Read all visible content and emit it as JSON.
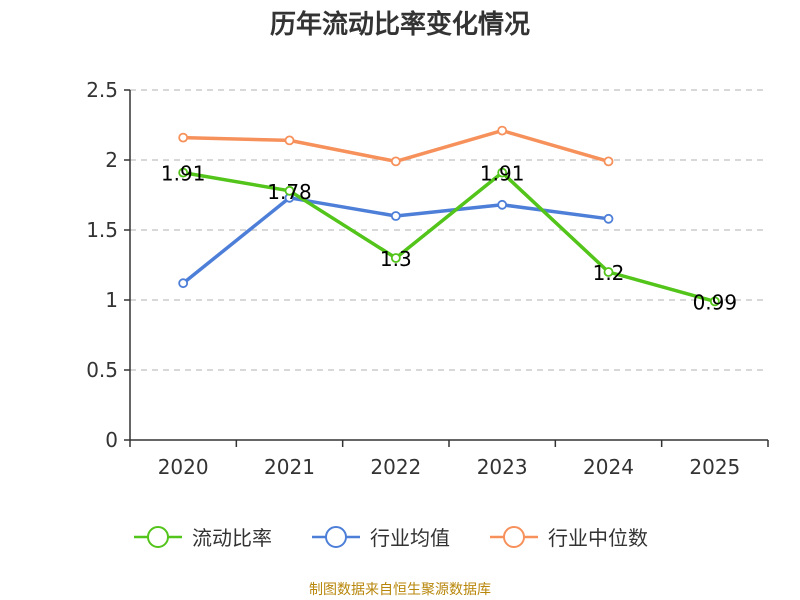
{
  "chart_data": {
    "type": "line",
    "title": "历年流动比率变化情况",
    "categories": [
      "2020",
      "2021",
      "2022",
      "2023",
      "2024",
      "2025"
    ],
    "ylim": [
      0,
      2.5
    ],
    "yticks": [
      0,
      0.5,
      1,
      1.5,
      2,
      2.5
    ],
    "ytick_labels": [
      "0",
      "0.5",
      "1",
      "1.5",
      "2",
      "2.5"
    ],
    "grid": true,
    "legend_position": "bottom",
    "series": [
      {
        "name": "流动比率",
        "color": "#52c41a",
        "values": [
          1.91,
          1.78,
          1.3,
          1.91,
          1.2,
          0.99
        ],
        "labels": [
          "1.91",
          "1.78",
          "1.3",
          "1.91",
          "1.2",
          "0.99"
        ]
      },
      {
        "name": "行业均值",
        "color": "#4e7fd8",
        "values": [
          1.12,
          1.73,
          1.6,
          1.68,
          1.58,
          null
        ]
      },
      {
        "name": "行业中位数",
        "color": "#f7915b",
        "values": [
          2.16,
          2.14,
          1.99,
          2.21,
          1.99,
          null
        ]
      }
    ],
    "source": "制图数据来自恒生聚源数据库"
  }
}
